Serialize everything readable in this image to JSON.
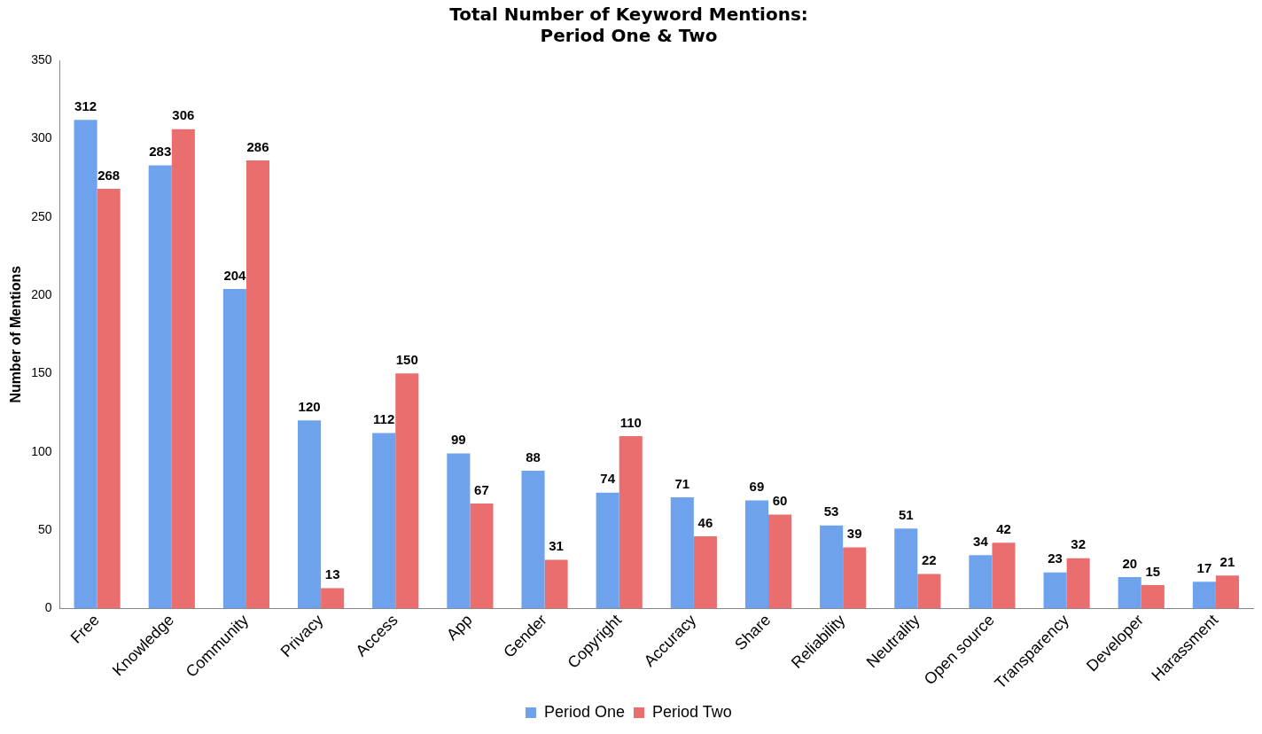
{
  "chart_data": {
    "type": "bar",
    "title": "Total Number of Keyword Mentions:\nPeriod One & Two",
    "ylabel": "Number of Mentions",
    "categories": [
      "Free",
      "Knowledge",
      "Community",
      "Privacy",
      "Access",
      "App",
      "Gender",
      "Copyright",
      "Accuracy",
      "Share",
      "Reliability",
      "Neutrality",
      "Open source",
      "Transparency",
      "Developer",
      "Harassment"
    ],
    "series": [
      {
        "name": "Period One",
        "color": "#6ea2ec",
        "values": [
          312,
          283,
          204,
          120,
          112,
          99,
          88,
          74,
          71,
          69,
          53,
          51,
          34,
          23,
          20,
          17
        ]
      },
      {
        "name": "Period Two",
        "color": "#ea6e6e",
        "values": [
          268,
          306,
          286,
          13,
          150,
          67,
          31,
          110,
          46,
          60,
          39,
          22,
          42,
          32,
          15,
          21
        ]
      }
    ],
    "ylim": [
      0,
      350
    ],
    "yticks": [
      0,
      50,
      100,
      150,
      200,
      250,
      300,
      350
    ],
    "grid": false,
    "legend": "bottom",
    "data_labels": true
  }
}
